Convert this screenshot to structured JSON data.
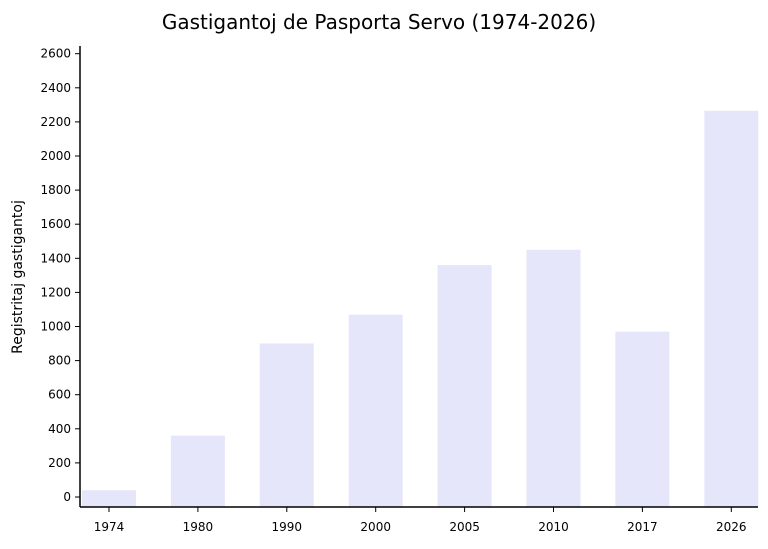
{
  "chart_data": {
    "type": "bar",
    "title": "Gastigantoj de Pasporta Servo (1974-2026)",
    "xlabel": "",
    "ylabel": "Registritaj gastigantoj",
    "categories": [
      "1974",
      "1980",
      "1990",
      "2000",
      "2005",
      "2010",
      "2017",
      "2026"
    ],
    "values": [
      40,
      360,
      900,
      1070,
      1360,
      1450,
      970,
      2265
    ],
    "ylim": [
      0,
      2650
    ],
    "yticks": [
      0,
      200,
      400,
      600,
      800,
      1000,
      1200,
      1400,
      1600,
      1800,
      2000,
      2200,
      2400,
      2600
    ],
    "grid": false,
    "legend": "none",
    "bar_color": "#e6e6fa",
    "axis_color": "#000000"
  }
}
